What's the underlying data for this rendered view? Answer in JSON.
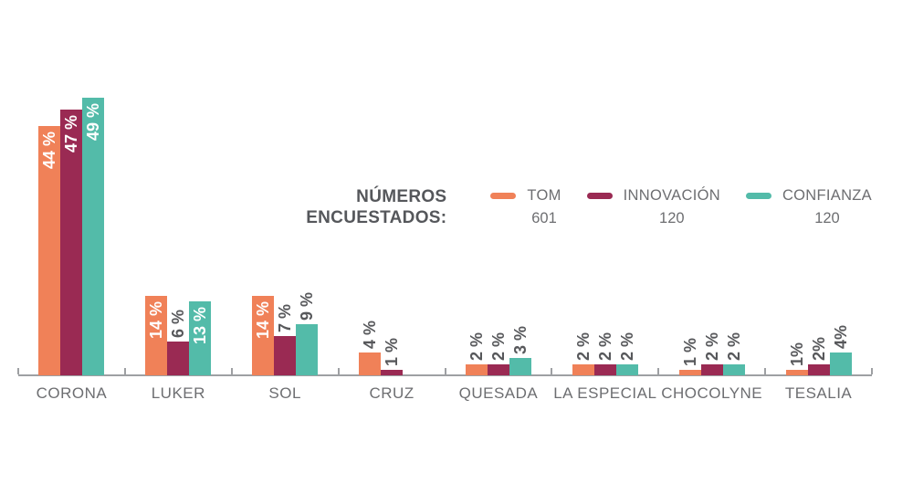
{
  "chart_data": {
    "type": "bar",
    "title": "",
    "unit": "%",
    "grid": false,
    "ylim": [
      0,
      52
    ],
    "legend_position": "middle-right",
    "legend": {
      "heading_lines": [
        "NÚMEROS",
        "ENCUESTADOS:"
      ],
      "entries": [
        {
          "name": "TOM",
          "count": "601",
          "color": "#F08158"
        },
        {
          "name": "INNOVACIÓN",
          "count": "120",
          "color": "#9A2A53"
        },
        {
          "name": "CONFIANZA",
          "count": "120",
          "color": "#53BBA9"
        }
      ]
    },
    "categories": [
      "CORONA",
      "LUKER",
      "SOL",
      "CRUZ",
      "QUESADA",
      "LA ESPECIAL",
      "CHOCOLYNE",
      "TESALIA"
    ],
    "series": [
      {
        "name": "TOM",
        "color": "#F08158",
        "values": [
          44,
          14,
          14,
          4,
          2,
          2,
          1,
          1
        ],
        "labels": [
          "44 %",
          "14 %",
          "14 %",
          "4 %",
          "2 %",
          "2 %",
          "1 %",
          "1%"
        ]
      },
      {
        "name": "INNOVACIÓN",
        "color": "#9A2A53",
        "values": [
          47,
          6,
          7,
          1,
          2,
          2,
          2,
          2
        ],
        "labels": [
          "47 %",
          "6 %",
          "7 %",
          "1 %",
          "2 %",
          "2 %",
          "2 %",
          "2%"
        ]
      },
      {
        "name": "CONFIANZA",
        "color": "#53BBA9",
        "values": [
          49,
          13,
          9,
          null,
          3,
          2,
          2,
          4
        ],
        "labels": [
          "49 %",
          "13 %",
          "9 %",
          null,
          "3 %",
          "2 %",
          "2 %",
          "4%"
        ]
      }
    ],
    "colors": {
      "axis": "#9EA0A3",
      "label_inside": "#FFFFFF",
      "label_outside": "#57585B",
      "category_text": "#6D6E71",
      "legend_heading": "#55575B"
    }
  }
}
